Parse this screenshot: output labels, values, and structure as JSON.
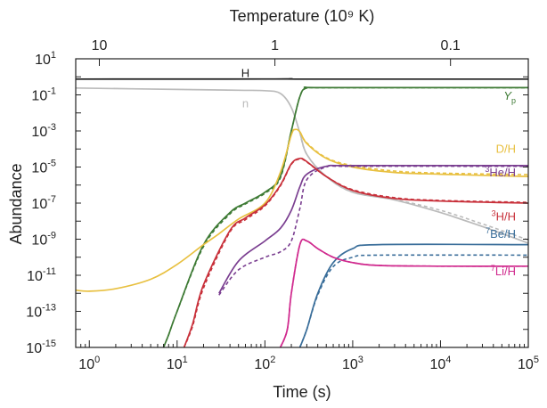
{
  "chart_data": {
    "type": "line",
    "xlabel": "Time (s)",
    "ylabel": "Abundance",
    "x2label": "Temperature (10⁹ K)",
    "xscale": "log",
    "yscale": "log",
    "xlim": [
      0.7,
      100000
    ],
    "ylim": [
      1e-15,
      10
    ],
    "grid": false,
    "legend": "none",
    "x_ticks": [
      {
        "value": 1,
        "label": "10",
        "sup": "0"
      },
      {
        "value": 10,
        "label": "10",
        "sup": "1"
      },
      {
        "value": 100,
        "label": "10",
        "sup": "2"
      },
      {
        "value": 1000,
        "label": "10",
        "sup": "3"
      },
      {
        "value": 10000,
        "label": "10",
        "sup": "4"
      },
      {
        "value": 100000,
        "label": "10",
        "sup": "5"
      }
    ],
    "y_ticks": [
      {
        "value": 10,
        "label": "10",
        "sup": "1"
      },
      {
        "value": 0.1,
        "label": "10",
        "sup": "-1"
      },
      {
        "value": 0.001,
        "label": "10",
        "sup": "-3"
      },
      {
        "value": 1e-05,
        "label": "10",
        "sup": "-5"
      },
      {
        "value": 1e-07,
        "label": "10",
        "sup": "-7"
      },
      {
        "value": 1e-09,
        "label": "10",
        "sup": "-9"
      },
      {
        "value": 1e-11,
        "label": "10",
        "sup": "-11"
      },
      {
        "value": 1e-13,
        "label": "10",
        "sup": "-13"
      },
      {
        "value": 1e-15,
        "label": "10",
        "sup": "-15"
      }
    ],
    "top_ticks": [
      {
        "time": 1.3,
        "label": "10"
      },
      {
        "time": 130,
        "label": "1"
      },
      {
        "time": 13000,
        "label": "0.1"
      }
    ],
    "series": [
      {
        "name": "H",
        "name_sup": "",
        "color": "#1a1a1a",
        "label_time": 60,
        "label_value": 1.0,
        "solid": [
          [
            0.7,
            0.75
          ],
          [
            100,
            0.76
          ],
          [
            200,
            0.77
          ],
          [
            300,
            0.752
          ],
          [
            100000,
            0.752
          ]
        ],
        "dashed": []
      },
      {
        "name": "n",
        "name_sup": "",
        "color": "#bbbbbb",
        "label_time": 60,
        "label_value": 0.02,
        "solid": [
          [
            0.7,
            0.24
          ],
          [
            10,
            0.2
          ],
          [
            50,
            0.18
          ],
          [
            100,
            0.17
          ],
          [
            150,
            0.12
          ],
          [
            200,
            0.02
          ],
          [
            250,
            0.0008
          ],
          [
            300,
            5e-05
          ],
          [
            500,
            3e-06
          ],
          [
            1000,
            4e-07
          ],
          [
            3000,
            1.5e-07
          ],
          [
            10000,
            3e-08
          ],
          [
            30000,
            5e-09
          ],
          [
            60000,
            1.5e-09
          ],
          [
            100000,
            6e-10
          ]
        ],
        "dashed": [
          [
            250,
            0.0008
          ],
          [
            300,
            5e-05
          ],
          [
            500,
            3e-06
          ],
          [
            1000,
            4e-07
          ],
          [
            3000,
            1.6e-07
          ],
          [
            10000,
            4e-08
          ],
          [
            30000,
            7e-09
          ],
          [
            60000,
            2.2e-09
          ],
          [
            100000,
            9e-10
          ]
        ]
      },
      {
        "name": "Y",
        "name_sup": "p",
        "color": "#3d7a34",
        "label_time": 60000,
        "label_value": 0.055,
        "solid": [
          [
            7,
            1e-15
          ],
          [
            8,
            5e-15
          ],
          [
            10,
            1e-13
          ],
          [
            20,
            5e-10
          ],
          [
            40,
            3e-08
          ],
          [
            60,
            1e-07
          ],
          [
            100,
            4e-07
          ],
          [
            150,
            3e-06
          ],
          [
            200,
            0.001
          ],
          [
            250,
            0.08
          ],
          [
            300,
            0.24
          ],
          [
            500,
            0.25
          ],
          [
            100000,
            0.25
          ]
        ],
        "dashed": [
          [
            7,
            1e-15
          ],
          [
            8,
            5e-15
          ],
          [
            10,
            1e-13
          ],
          [
            20,
            4e-10
          ],
          [
            40,
            2.5e-08
          ],
          [
            60,
            9e-08
          ],
          [
            100,
            3.5e-07
          ],
          [
            150,
            2.5e-06
          ],
          [
            200,
            0.001
          ],
          [
            250,
            0.08
          ],
          [
            300,
            0.245
          ],
          [
            500,
            0.248
          ],
          [
            100000,
            0.248
          ]
        ]
      },
      {
        "name": "D/H",
        "name_sup": "",
        "color": "#e8c040",
        "label_time": 45000,
        "label_value": 6e-05,
        "solid": [
          [
            0.7,
            1.5e-12
          ],
          [
            1,
            1.3e-12
          ],
          [
            2,
            1.8e-12
          ],
          [
            5,
            6e-12
          ],
          [
            10,
            4e-11
          ],
          [
            20,
            5e-10
          ],
          [
            30,
            2e-09
          ],
          [
            50,
            1.3e-08
          ],
          [
            100,
            1e-07
          ],
          [
            150,
            5e-06
          ],
          [
            200,
            0.0006
          ],
          [
            220,
            0.0012
          ],
          [
            250,
            0.0009
          ],
          [
            300,
            0.0002
          ],
          [
            500,
            3e-05
          ],
          [
            1000,
            1e-05
          ],
          [
            3000,
            5e-06
          ],
          [
            10000,
            4e-06
          ],
          [
            100000,
            3e-06
          ]
        ],
        "dashed": [
          [
            250,
            0.0009
          ],
          [
            300,
            0.00022
          ],
          [
            500,
            3.3e-05
          ],
          [
            1000,
            1.2e-05
          ],
          [
            3000,
            6e-06
          ],
          [
            10000,
            4.6e-06
          ],
          [
            100000,
            3.8e-06
          ]
        ]
      },
      {
        "name": "He/H",
        "name_sup": "3",
        "color": "#7a3e90",
        "label_time": 45000,
        "label_value": 3e-06,
        "solid": [
          [
            30,
            1e-12
          ],
          [
            50,
            6e-11
          ],
          [
            100,
            8e-10
          ],
          [
            150,
            4e-09
          ],
          [
            200,
            4e-08
          ],
          [
            250,
            8e-07
          ],
          [
            300,
            4e-06
          ],
          [
            500,
            1.1e-05
          ],
          [
            1000,
            1.2e-05
          ],
          [
            100000,
            1.2e-05
          ]
        ],
        "dashed": [
          [
            30,
            8e-13
          ],
          [
            50,
            2e-11
          ],
          [
            100,
            1e-10
          ],
          [
            150,
            2e-10
          ],
          [
            200,
            8e-10
          ],
          [
            250,
            5e-08
          ],
          [
            300,
            2e-06
          ],
          [
            500,
            1e-05
          ],
          [
            1000,
            1.1e-05
          ],
          [
            100000,
            1.1e-05
          ]
        ]
      },
      {
        "name": "H/H",
        "name_sup": "3",
        "color": "#c8303a",
        "label_time": 45000,
        "label_value": 1.1e-08,
        "solid": [
          [
            12,
            1e-15
          ],
          [
            15,
            2e-14
          ],
          [
            20,
            3e-12
          ],
          [
            40,
            3e-09
          ],
          [
            60,
            1.5e-08
          ],
          [
            100,
            8e-08
          ],
          [
            150,
            1e-06
          ],
          [
            200,
            1.5e-05
          ],
          [
            250,
            3e-05
          ],
          [
            300,
            2e-05
          ],
          [
            500,
            3e-06
          ],
          [
            1000,
            5e-07
          ],
          [
            3000,
            1.8e-07
          ],
          [
            10000,
            1.3e-07
          ],
          [
            100000,
            1e-07
          ]
        ],
        "dashed": [
          [
            12,
            1e-15
          ],
          [
            15,
            1.5e-14
          ],
          [
            20,
            2e-12
          ],
          [
            40,
            2.5e-09
          ],
          [
            60,
            1.2e-08
          ],
          [
            100,
            7e-08
          ],
          [
            150,
            9e-07
          ],
          [
            200,
            1.4e-05
          ],
          [
            250,
            2.8e-05
          ],
          [
            300,
            1.9e-05
          ],
          [
            500,
            3e-06
          ],
          [
            1000,
            5.5e-07
          ],
          [
            3000,
            2e-07
          ],
          [
            10000,
            1.4e-07
          ],
          [
            100000,
            1.1e-07
          ]
        ]
      },
      {
        "name": "Be/H",
        "name_sup": "7",
        "color": "#3a6e9a",
        "label_time": 45000,
        "label_value": 1.2e-09,
        "solid": [
          [
            250,
            1e-15
          ],
          [
            300,
            1e-14
          ],
          [
            400,
            1e-12
          ],
          [
            600,
            5e-11
          ],
          [
            1000,
            3e-10
          ],
          [
            2000,
            5e-10
          ],
          [
            100000,
            5e-10
          ]
        ],
        "dashed": [
          [
            250,
            1e-15
          ],
          [
            300,
            1e-14
          ],
          [
            400,
            8e-13
          ],
          [
            600,
            3e-11
          ],
          [
            1000,
            1e-10
          ],
          [
            2000,
            1.3e-10
          ],
          [
            100000,
            1.3e-10
          ]
        ]
      },
      {
        "name": "Li/H",
        "name_sup": "7",
        "color": "#d02a8e",
        "label_time": 45000,
        "label_value": 1e-11,
        "solid": [
          [
            150,
            1e-15
          ],
          [
            180,
            1e-14
          ],
          [
            200,
            1e-12
          ],
          [
            250,
            5e-10
          ],
          [
            300,
            8e-10
          ],
          [
            400,
            3e-10
          ],
          [
            600,
            1e-10
          ],
          [
            1000,
            5e-11
          ],
          [
            2000,
            3.5e-11
          ],
          [
            10000,
            3.2e-11
          ],
          [
            100000,
            3.2e-11
          ]
        ],
        "dashed": [
          [
            150,
            1e-15
          ],
          [
            180,
            1e-14
          ],
          [
            200,
            1e-12
          ],
          [
            250,
            5e-10
          ],
          [
            300,
            8e-10
          ],
          [
            400,
            3e-10
          ],
          [
            600,
            1e-10
          ],
          [
            1000,
            5e-11
          ],
          [
            2000,
            3.5e-11
          ],
          [
            10000,
            3.2e-11
          ],
          [
            100000,
            3.2e-11
          ]
        ]
      }
    ]
  }
}
